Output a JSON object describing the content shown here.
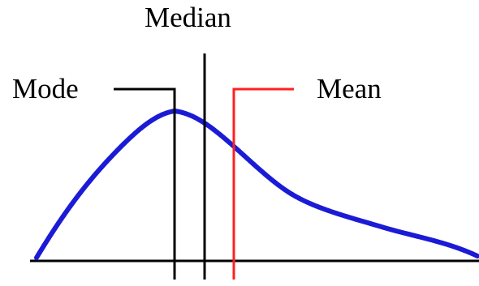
{
  "labels": {
    "median": "Median",
    "mode": "Mode",
    "mean": "Mean"
  },
  "colors": {
    "curve": "#1b1bd6",
    "mean": "#ff2020",
    "lines": "#000000",
    "background": "#ffffff"
  },
  "diagram": {
    "type": "right-skewed distribution curve",
    "markers": [
      "mode",
      "median",
      "mean"
    ]
  }
}
